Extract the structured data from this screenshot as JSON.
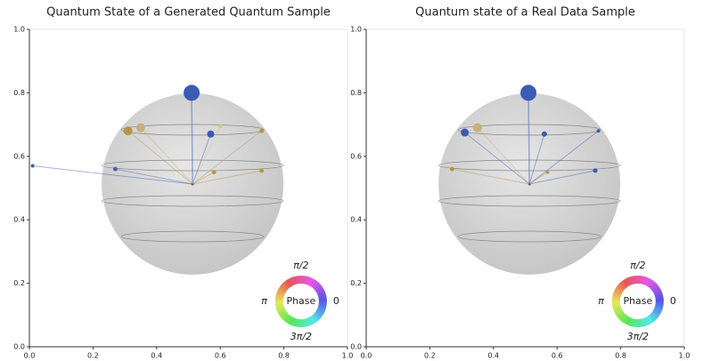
{
  "chart_data": [
    {
      "type": "qsphere",
      "title": "Quantum State of a Generated Quantum Sample",
      "xlim": [
        0,
        1
      ],
      "ylim": [
        0,
        1
      ],
      "xticks": [
        {
          "value": 0,
          "label": "0.0"
        },
        {
          "value": 0.2,
          "label": "0.2"
        },
        {
          "value": 0.4,
          "label": "0.4"
        },
        {
          "value": 0.6,
          "label": "0.6"
        },
        {
          "value": 0.8,
          "label": "0.8"
        },
        {
          "value": 1,
          "label": "1.0"
        }
      ],
      "yticks": [
        {
          "value": 0,
          "label": "0.0"
        },
        {
          "value": 0.2,
          "label": "0.2"
        },
        {
          "value": 0.4,
          "label": "0.4"
        },
        {
          "value": 0.6,
          "label": "0.6"
        },
        {
          "value": 0.8,
          "label": "0.8"
        },
        {
          "value": 1,
          "label": "1.0"
        }
      ],
      "x": [
        0.51,
        0.31,
        0.35,
        0.57,
        0.6,
        0.73,
        0.01,
        0.27,
        0.73,
        0.58
      ],
      "values": [
        0.8,
        0.68,
        0.69,
        0.67,
        0.695,
        0.68,
        0.57,
        0.56,
        0.555,
        0.55
      ],
      "sizes": [
        9,
        5,
        5,
        4,
        2.5,
        2.5,
        2,
        2.5,
        2.5,
        2.5
      ],
      "colors": [
        "#3b5bb5",
        "#b8954a",
        "#c8b07a",
        "#3b5bb5",
        "#d6c694",
        "#b8954a",
        "#3b5bb5",
        "#4a64b8",
        "#b8954a",
        "#b8954a"
      ],
      "phase": {
        "center": "Phase",
        "top": "π/2",
        "left": "π",
        "right": "0",
        "bottom": "3π/2"
      }
    },
    {
      "type": "qsphere",
      "title": "Quantum state of a Real Data Sample",
      "xlim": [
        0,
        1
      ],
      "ylim": [
        0,
        1
      ],
      "xticks": [
        {
          "value": 0,
          "label": "0.0"
        },
        {
          "value": 0.2,
          "label": "0.2"
        },
        {
          "value": 0.4,
          "label": "0.4"
        },
        {
          "value": 0.6,
          "label": "0.6"
        },
        {
          "value": 0.8,
          "label": "0.8"
        },
        {
          "value": 1,
          "label": "1.0"
        }
      ],
      "yticks": [
        {
          "value": 0,
          "label": "0.0"
        },
        {
          "value": 0.2,
          "label": "0.2"
        },
        {
          "value": 0.4,
          "label": "0.4"
        },
        {
          "value": 0.6,
          "label": "0.6"
        },
        {
          "value": 0.8,
          "label": "0.8"
        },
        {
          "value": 1,
          "label": "1.0"
        }
      ],
      "x": [
        0.51,
        0.31,
        0.35,
        0.56,
        0.73,
        0.27,
        0.72,
        0.57
      ],
      "values": [
        0.8,
        0.675,
        0.69,
        0.67,
        0.68,
        0.56,
        0.555,
        0.55
      ],
      "sizes": [
        9,
        4.5,
        5,
        3,
        2,
        2.5,
        2.5,
        2
      ],
      "colors": [
        "#3b5bb5",
        "#3b5bb5",
        "#c8b07a",
        "#3b5bb5",
        "#3b5bb5",
        "#b8954a",
        "#3b5bb5",
        "#b8954a"
      ],
      "phase": {
        "center": "Phase",
        "top": "π/2",
        "left": "π",
        "right": "0",
        "bottom": "3π/2"
      }
    }
  ]
}
